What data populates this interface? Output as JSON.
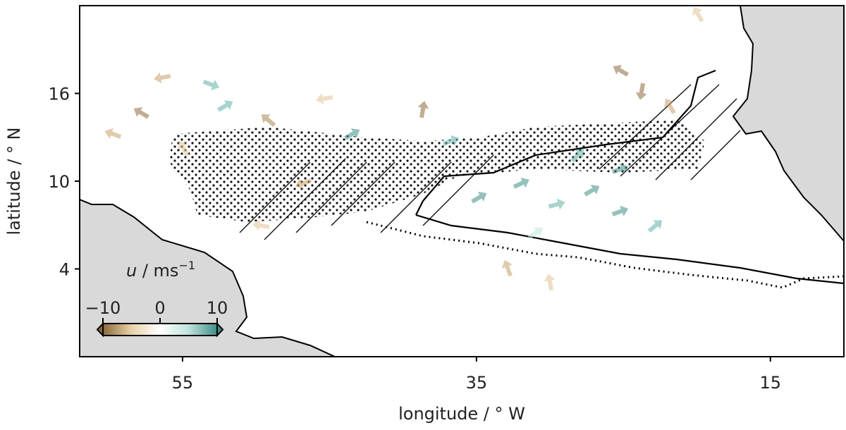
{
  "chart_data": {
    "type": "map",
    "xlabel": "longitude / ° W",
    "ylabel": "latitude / ° N",
    "xlim": [
      62,
      10
    ],
    "xticks": [
      55,
      35,
      15
    ],
    "ylim": [
      -2,
      22
    ],
    "yticks": [
      4,
      10,
      16
    ],
    "land_color": "#d9d9d9",
    "colorbar": {
      "label": [
        "u",
        " / ms",
        "−1"
      ],
      "clim": [
        -10,
        10
      ],
      "ticks": [
        {
          "value": -10,
          "label": "−10"
        },
        0,
        10
      ],
      "colors": [
        "#8c6a3c",
        "#e8d2a8",
        "#ffffff",
        "#bfe3dc",
        "#3e8f86"
      ]
    }
  }
}
